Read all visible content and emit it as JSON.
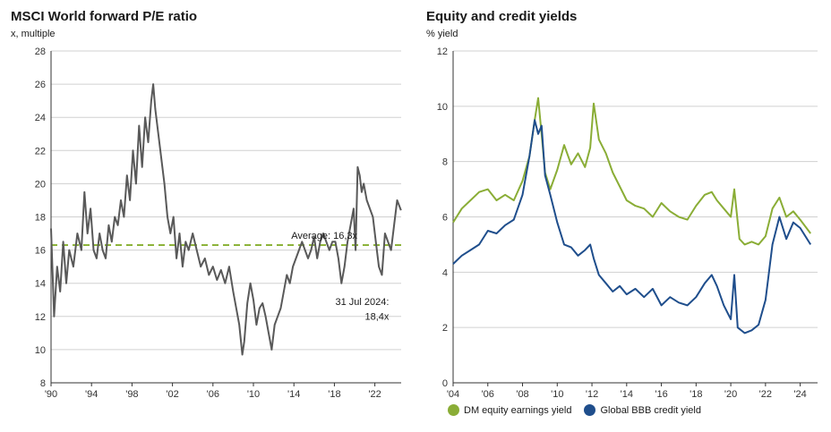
{
  "chart_data": [
    {
      "type": "line",
      "title": "MSCI World forward P/E ratio",
      "subtitle": "x, multiple",
      "ylim": [
        8,
        28
      ],
      "yticks": [
        8,
        10,
        12,
        14,
        16,
        18,
        20,
        22,
        24,
        26,
        28
      ],
      "xlim": [
        1990,
        2024.6
      ],
      "xticks": [
        1990,
        1994,
        1998,
        2002,
        2006,
        2010,
        2014,
        2018,
        2022
      ],
      "xtick_labels": [
        "'90",
        "'94",
        "'98",
        "'02",
        "'06",
        "'10",
        "'14",
        "'18",
        "'22"
      ],
      "grid": true,
      "average": {
        "value": 16.3,
        "label": "Average: 16,3x",
        "color": "#8db33a"
      },
      "annotation": {
        "line1": "31 Jul 2024:",
        "line2": "18,4x"
      },
      "series": [
        {
          "color": "#595959",
          "x": [
            1990.0,
            1990.3,
            1990.6,
            1990.9,
            1991.2,
            1991.5,
            1991.8,
            1992.2,
            1992.6,
            1993.0,
            1993.3,
            1993.6,
            1993.9,
            1994.2,
            1994.5,
            1994.8,
            1995.1,
            1995.4,
            1995.7,
            1996.0,
            1996.3,
            1996.6,
            1996.9,
            1997.2,
            1997.5,
            1997.8,
            1998.1,
            1998.4,
            1998.7,
            1999.0,
            1999.3,
            1999.6,
            1999.9,
            2000.1,
            2000.3,
            2000.6,
            2000.9,
            2001.2,
            2001.5,
            2001.8,
            2002.1,
            2002.4,
            2002.7,
            2003.0,
            2003.3,
            2003.6,
            2004.0,
            2004.4,
            2004.8,
            2005.2,
            2005.6,
            2006.0,
            2006.4,
            2006.8,
            2007.2,
            2007.6,
            2008.0,
            2008.3,
            2008.6,
            2008.9,
            2009.1,
            2009.4,
            2009.7,
            2010.0,
            2010.3,
            2010.6,
            2010.9,
            2011.2,
            2011.5,
            2011.8,
            2012.1,
            2012.4,
            2012.7,
            2013.0,
            2013.3,
            2013.6,
            2013.9,
            2014.2,
            2014.5,
            2014.8,
            2015.1,
            2015.4,
            2015.7,
            2016.0,
            2016.3,
            2016.6,
            2016.9,
            2017.2,
            2017.5,
            2017.8,
            2018.1,
            2018.4,
            2018.7,
            2019.0,
            2019.3,
            2019.6,
            2019.9,
            2020.1,
            2020.3,
            2020.5,
            2020.7,
            2020.9,
            2021.2,
            2021.5,
            2021.8,
            2022.1,
            2022.4,
            2022.7,
            2023.0,
            2023.3,
            2023.6,
            2023.9,
            2024.2,
            2024.58
          ],
          "y": [
            17.3,
            12.0,
            15.0,
            13.5,
            16.5,
            14.0,
            16.0,
            15.0,
            17.0,
            16.0,
            19.5,
            17.0,
            18.5,
            16.0,
            15.5,
            17.0,
            16.0,
            15.5,
            17.5,
            16.5,
            18.0,
            17.5,
            19.0,
            18.0,
            20.5,
            19.0,
            22.0,
            20.0,
            23.5,
            21.0,
            24.0,
            22.5,
            25.0,
            26.0,
            24.5,
            23.0,
            21.5,
            20.0,
            18.0,
            17.0,
            18.0,
            15.5,
            17.0,
            15.0,
            16.5,
            16.0,
            17.0,
            16.0,
            15.0,
            15.5,
            14.5,
            15.0,
            14.2,
            14.8,
            14.0,
            15.0,
            13.5,
            12.5,
            11.5,
            9.7,
            10.5,
            12.8,
            14.0,
            13.0,
            11.5,
            12.5,
            12.8,
            12.0,
            11.0,
            10.0,
            11.5,
            12.0,
            12.5,
            13.5,
            14.5,
            14.0,
            15.0,
            15.5,
            16.0,
            16.5,
            16.0,
            15.5,
            16.0,
            16.8,
            15.5,
            16.5,
            17.0,
            16.5,
            16.0,
            16.5,
            16.5,
            15.5,
            14.0,
            15.0,
            16.5,
            17.5,
            18.5,
            16.0,
            21.0,
            20.5,
            19.5,
            20.0,
            19.0,
            18.5,
            18.0,
            16.5,
            15.0,
            14.5,
            17.0,
            16.5,
            16.0,
            17.5,
            19.0,
            18.4
          ]
        }
      ]
    },
    {
      "type": "line",
      "title": "Equity and credit yields",
      "subtitle": "% yield",
      "ylim": [
        0,
        12
      ],
      "yticks": [
        0,
        2,
        4,
        6,
        8,
        10,
        12
      ],
      "xlim": [
        2004,
        2025
      ],
      "xticks": [
        2004,
        2006,
        2008,
        2010,
        2012,
        2014,
        2016,
        2018,
        2020,
        2022,
        2024
      ],
      "xtick_labels": [
        "'04",
        "'06",
        "'08",
        "'10",
        "'12",
        "'14",
        "'16",
        "'18",
        "'20",
        "'22",
        "'24"
      ],
      "grid": true,
      "legend_position": "bottom",
      "series": [
        {
          "name": "DM equity earnings yield",
          "color": "#8aad36",
          "x": [
            2004.0,
            2004.5,
            2005.0,
            2005.5,
            2006.0,
            2006.5,
            2007.0,
            2007.5,
            2008.0,
            2008.4,
            2008.7,
            2008.9,
            2009.1,
            2009.3,
            2009.6,
            2010.0,
            2010.4,
            2010.8,
            2011.2,
            2011.6,
            2011.9,
            2012.1,
            2012.4,
            2012.8,
            2013.2,
            2013.6,
            2014.0,
            2014.5,
            2015.0,
            2015.5,
            2016.0,
            2016.5,
            2017.0,
            2017.5,
            2018.0,
            2018.5,
            2018.9,
            2019.2,
            2019.6,
            2020.0,
            2020.2,
            2020.5,
            2020.8,
            2021.2,
            2021.6,
            2022.0,
            2022.4,
            2022.8,
            2023.2,
            2023.6,
            2024.0,
            2024.6
          ],
          "y": [
            5.8,
            6.3,
            6.6,
            6.9,
            7.0,
            6.6,
            6.8,
            6.6,
            7.3,
            8.2,
            9.5,
            10.3,
            9.0,
            7.6,
            7.0,
            7.7,
            8.6,
            7.9,
            8.3,
            7.8,
            8.5,
            10.1,
            8.8,
            8.3,
            7.6,
            7.1,
            6.6,
            6.4,
            6.3,
            6.0,
            6.5,
            6.2,
            6.0,
            5.9,
            6.4,
            6.8,
            6.9,
            6.6,
            6.3,
            6.0,
            7.0,
            5.2,
            5.0,
            5.1,
            5.0,
            5.3,
            6.3,
            6.7,
            6.0,
            6.2,
            5.9,
            5.4
          ]
        },
        {
          "name": "Global BBB credit yield",
          "color": "#1f4e8c",
          "x": [
            2004.0,
            2004.5,
            2005.0,
            2005.5,
            2006.0,
            2006.5,
            2007.0,
            2007.5,
            2008.0,
            2008.4,
            2008.7,
            2008.9,
            2009.1,
            2009.3,
            2009.6,
            2010.0,
            2010.4,
            2010.8,
            2011.2,
            2011.6,
            2011.9,
            2012.1,
            2012.4,
            2012.8,
            2013.2,
            2013.6,
            2014.0,
            2014.5,
            2015.0,
            2015.5,
            2016.0,
            2016.5,
            2017.0,
            2017.5,
            2018.0,
            2018.5,
            2018.9,
            2019.2,
            2019.6,
            2020.0,
            2020.2,
            2020.4,
            2020.8,
            2021.2,
            2021.6,
            2022.0,
            2022.4,
            2022.8,
            2023.2,
            2023.6,
            2024.0,
            2024.6
          ],
          "y": [
            4.3,
            4.6,
            4.8,
            5.0,
            5.5,
            5.4,
            5.7,
            5.9,
            6.8,
            8.2,
            9.5,
            9.0,
            9.3,
            7.5,
            6.8,
            5.8,
            5.0,
            4.9,
            4.6,
            4.8,
            5.0,
            4.5,
            3.9,
            3.6,
            3.3,
            3.5,
            3.2,
            3.4,
            3.1,
            3.4,
            2.8,
            3.1,
            2.9,
            2.8,
            3.1,
            3.6,
            3.9,
            3.5,
            2.8,
            2.3,
            3.9,
            2.0,
            1.8,
            1.9,
            2.1,
            3.0,
            5.0,
            6.0,
            5.2,
            5.8,
            5.6,
            5.0
          ]
        }
      ]
    }
  ]
}
